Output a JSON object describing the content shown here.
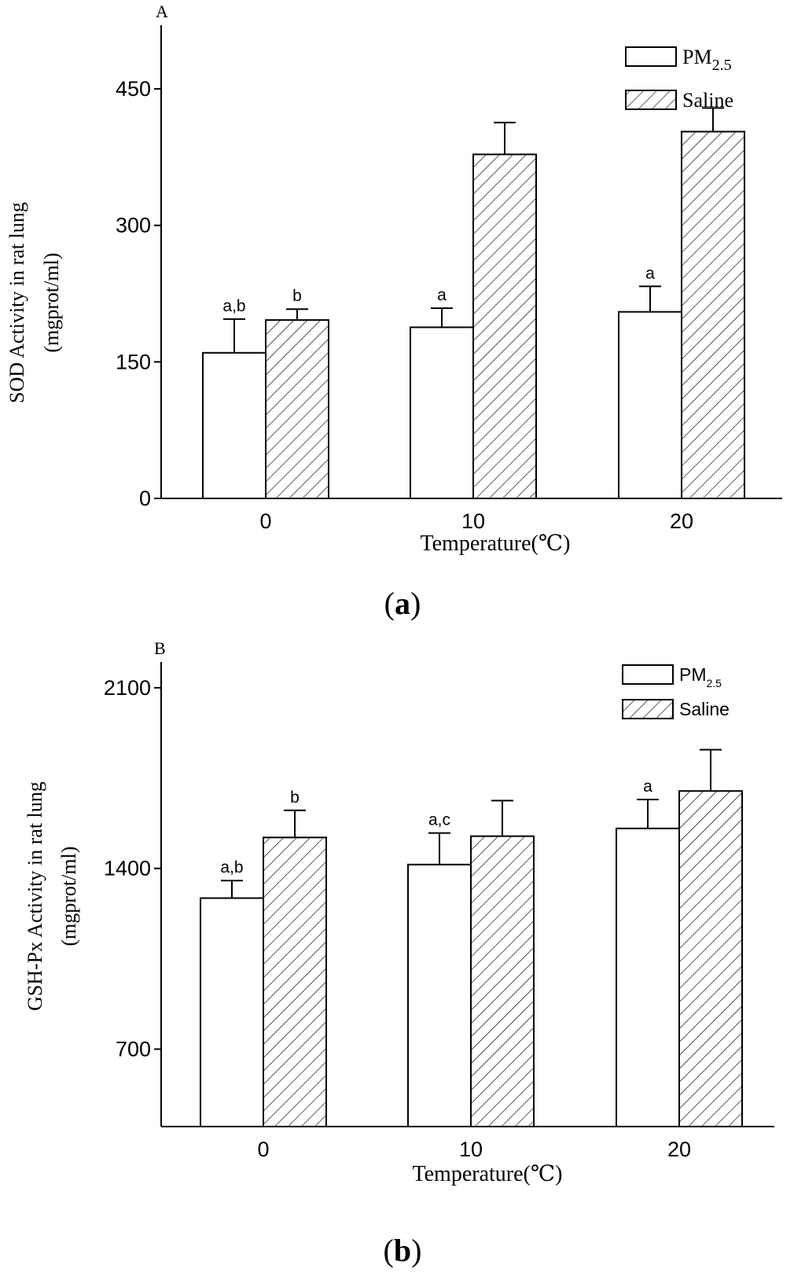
{
  "legend": {
    "pm_label": "PM",
    "pm_sub": "2.5",
    "saline_label": "Saline"
  },
  "chart_data": [
    {
      "type": "bar",
      "panel_letter": "A",
      "caption_letter": "a",
      "title": "",
      "xlabel": "Temperature(℃)",
      "ylabel_line1": "SOD Activity in rat lung",
      "ylabel_line2": "(mgprot/ml)",
      "categories": [
        "0",
        "10",
        "20"
      ],
      "ylim": [
        0,
        520
      ],
      "yticks": [
        0,
        150,
        300,
        450
      ],
      "ytick_labels": [
        "0",
        "150",
        "300",
        "450"
      ],
      "series": [
        {
          "name": "PM2.5",
          "values": [
            160,
            188,
            205
          ],
          "errors": [
            37,
            21,
            28
          ],
          "annotations": [
            "a,b",
            "a",
            "a"
          ]
        },
        {
          "name": "Saline",
          "values": [
            196,
            378,
            403
          ],
          "errors": [
            12,
            35,
            26
          ],
          "annotations": [
            "b",
            "",
            ""
          ]
        }
      ]
    },
    {
      "type": "bar",
      "panel_letter": "B",
      "caption_letter": "b",
      "title": "",
      "xlabel": "Temperature(℃)",
      "ylabel_line1": "GSH-Px Activity in rat lung",
      "ylabel_line2": "(mgprot/ml)",
      "categories": [
        "0",
        "10",
        "20"
      ],
      "ylim": [
        400,
        2200
      ],
      "yticks": [
        700,
        1400,
        2100
      ],
      "ytick_labels": [
        "700",
        "1400",
        "2100"
      ],
      "series": [
        {
          "name": "PM2.5",
          "values": [
            1285,
            1415,
            1555
          ],
          "errors": [
            68,
            122,
            112
          ],
          "annotations": [
            "a,b",
            "a,c",
            "a"
          ]
        },
        {
          "name": "Saline",
          "values": [
            1520,
            1525,
            1700
          ],
          "errors": [
            105,
            138,
            160
          ],
          "annotations": [
            "b",
            "",
            ""
          ]
        }
      ]
    }
  ]
}
